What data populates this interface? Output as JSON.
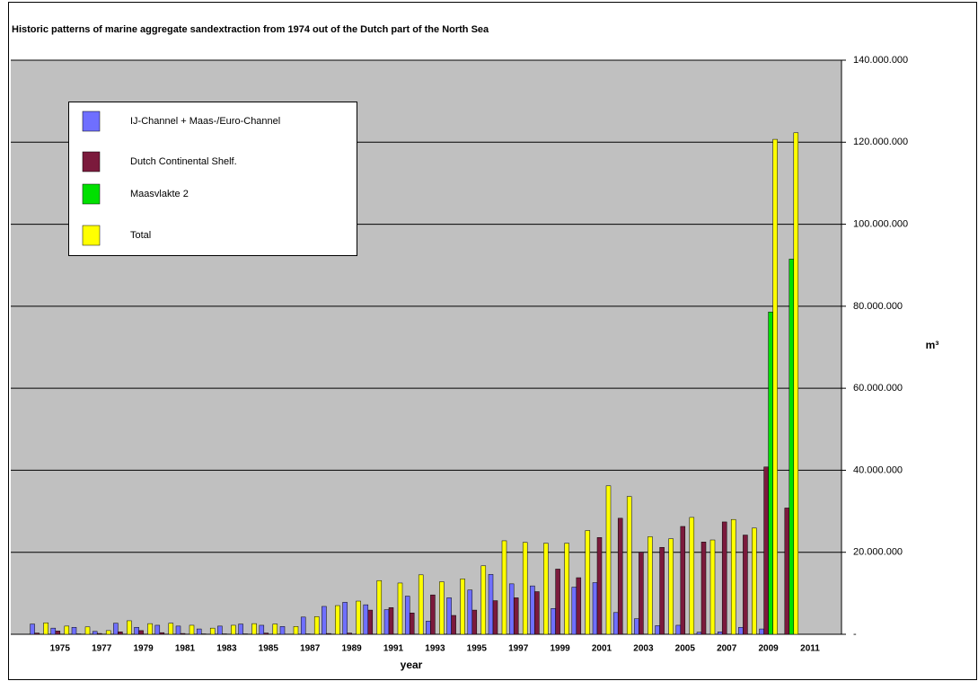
{
  "chart_data": {
    "type": "bar",
    "title": "Historic patterns of marine aggregate sandextraction from 1974 out of the Dutch part of the North Sea",
    "x_label": "year",
    "y_label": "m³",
    "categories": [
      null,
      "1975",
      null,
      "1977",
      null,
      "1979",
      null,
      "1981",
      null,
      "1983",
      null,
      "1985",
      null,
      "1987",
      null,
      "1989",
      null,
      "1991",
      null,
      "1993",
      null,
      "1995",
      null,
      "1997",
      null,
      "1999",
      null,
      "2001",
      null,
      "2003",
      null,
      "2005",
      null,
      "2007",
      null,
      "2009",
      null,
      "2011"
    ],
    "series": [
      {
        "name": "IJ-Channel + Maas-/Euro-Channel",
        "color": "#6f6fff",
        "values": [
          2500000,
          1500000,
          1700000,
          700000,
          2700000,
          1700000,
          2200000,
          2000000,
          1300000,
          2000000,
          2500000,
          2200000,
          1900000,
          4200000,
          6800000,
          7800000,
          7200000,
          6000000,
          9300000,
          3200000,
          8900000,
          10800000,
          14600000,
          12300000,
          11800000,
          6300000,
          11500000,
          12600000,
          5300000,
          3800000,
          2100000,
          2200000,
          500000,
          600000,
          1700000,
          1300000,
          0,
          0
        ]
      },
      {
        "name": "Dutch Continental Shelf.",
        "color": "#7b1a3c",
        "values": [
          300000,
          800000,
          100000,
          200000,
          600000,
          900000,
          400000,
          200000,
          100000,
          100000,
          100000,
          300000,
          0,
          100000,
          200000,
          300000,
          5900000,
          6500000,
          5200000,
          9600000,
          4600000,
          5900000,
          8200000,
          8900000,
          10400000,
          15900000,
          13800000,
          23600000,
          28300000,
          20000000,
          21200000,
          26300000,
          22500000,
          27400000,
          24200000,
          40800000,
          30800000,
          0
        ]
      },
      {
        "name": "Maasvlakte 2",
        "color": "#00e000",
        "values": [
          0,
          0,
          0,
          0,
          0,
          0,
          0,
          0,
          0,
          0,
          0,
          0,
          0,
          0,
          0,
          0,
          0,
          0,
          0,
          0,
          0,
          0,
          0,
          0,
          0,
          0,
          0,
          0,
          0,
          0,
          0,
          0,
          0,
          0,
          0,
          78600000,
          91500000,
          0
        ]
      },
      {
        "name": "Total",
        "color": "#ffff00",
        "values": [
          2800000,
          2000000,
          1800000,
          900000,
          3300000,
          2600000,
          2700000,
          2200000,
          1500000,
          2200000,
          2600000,
          2500000,
          1900000,
          4300000,
          7000000,
          8100000,
          13100000,
          12500000,
          14500000,
          12800000,
          13500000,
          16700000,
          22800000,
          22400000,
          22200000,
          22200000,
          25300000,
          36200000,
          33600000,
          23800000,
          23300000,
          28500000,
          23000000,
          28000000,
          25900000,
          120700000,
          122300000,
          0
        ]
      }
    ],
    "ylim": [
      0,
      140000000
    ],
    "yticks": [
      {
        "value": 0,
        "label": "-"
      },
      {
        "value": 20000000,
        "label": "20.000.000"
      },
      {
        "value": 40000000,
        "label": "40.000.000"
      },
      {
        "value": 60000000,
        "label": "60.000.000"
      },
      {
        "value": 80000000,
        "label": "80.000.000"
      },
      {
        "value": 100000000,
        "label": "100.000.000"
      },
      {
        "value": 120000000,
        "label": "120.000.000"
      },
      {
        "value": 140000000,
        "label": "140.000.000"
      }
    ],
    "grid": true,
    "legend": "upper left"
  }
}
